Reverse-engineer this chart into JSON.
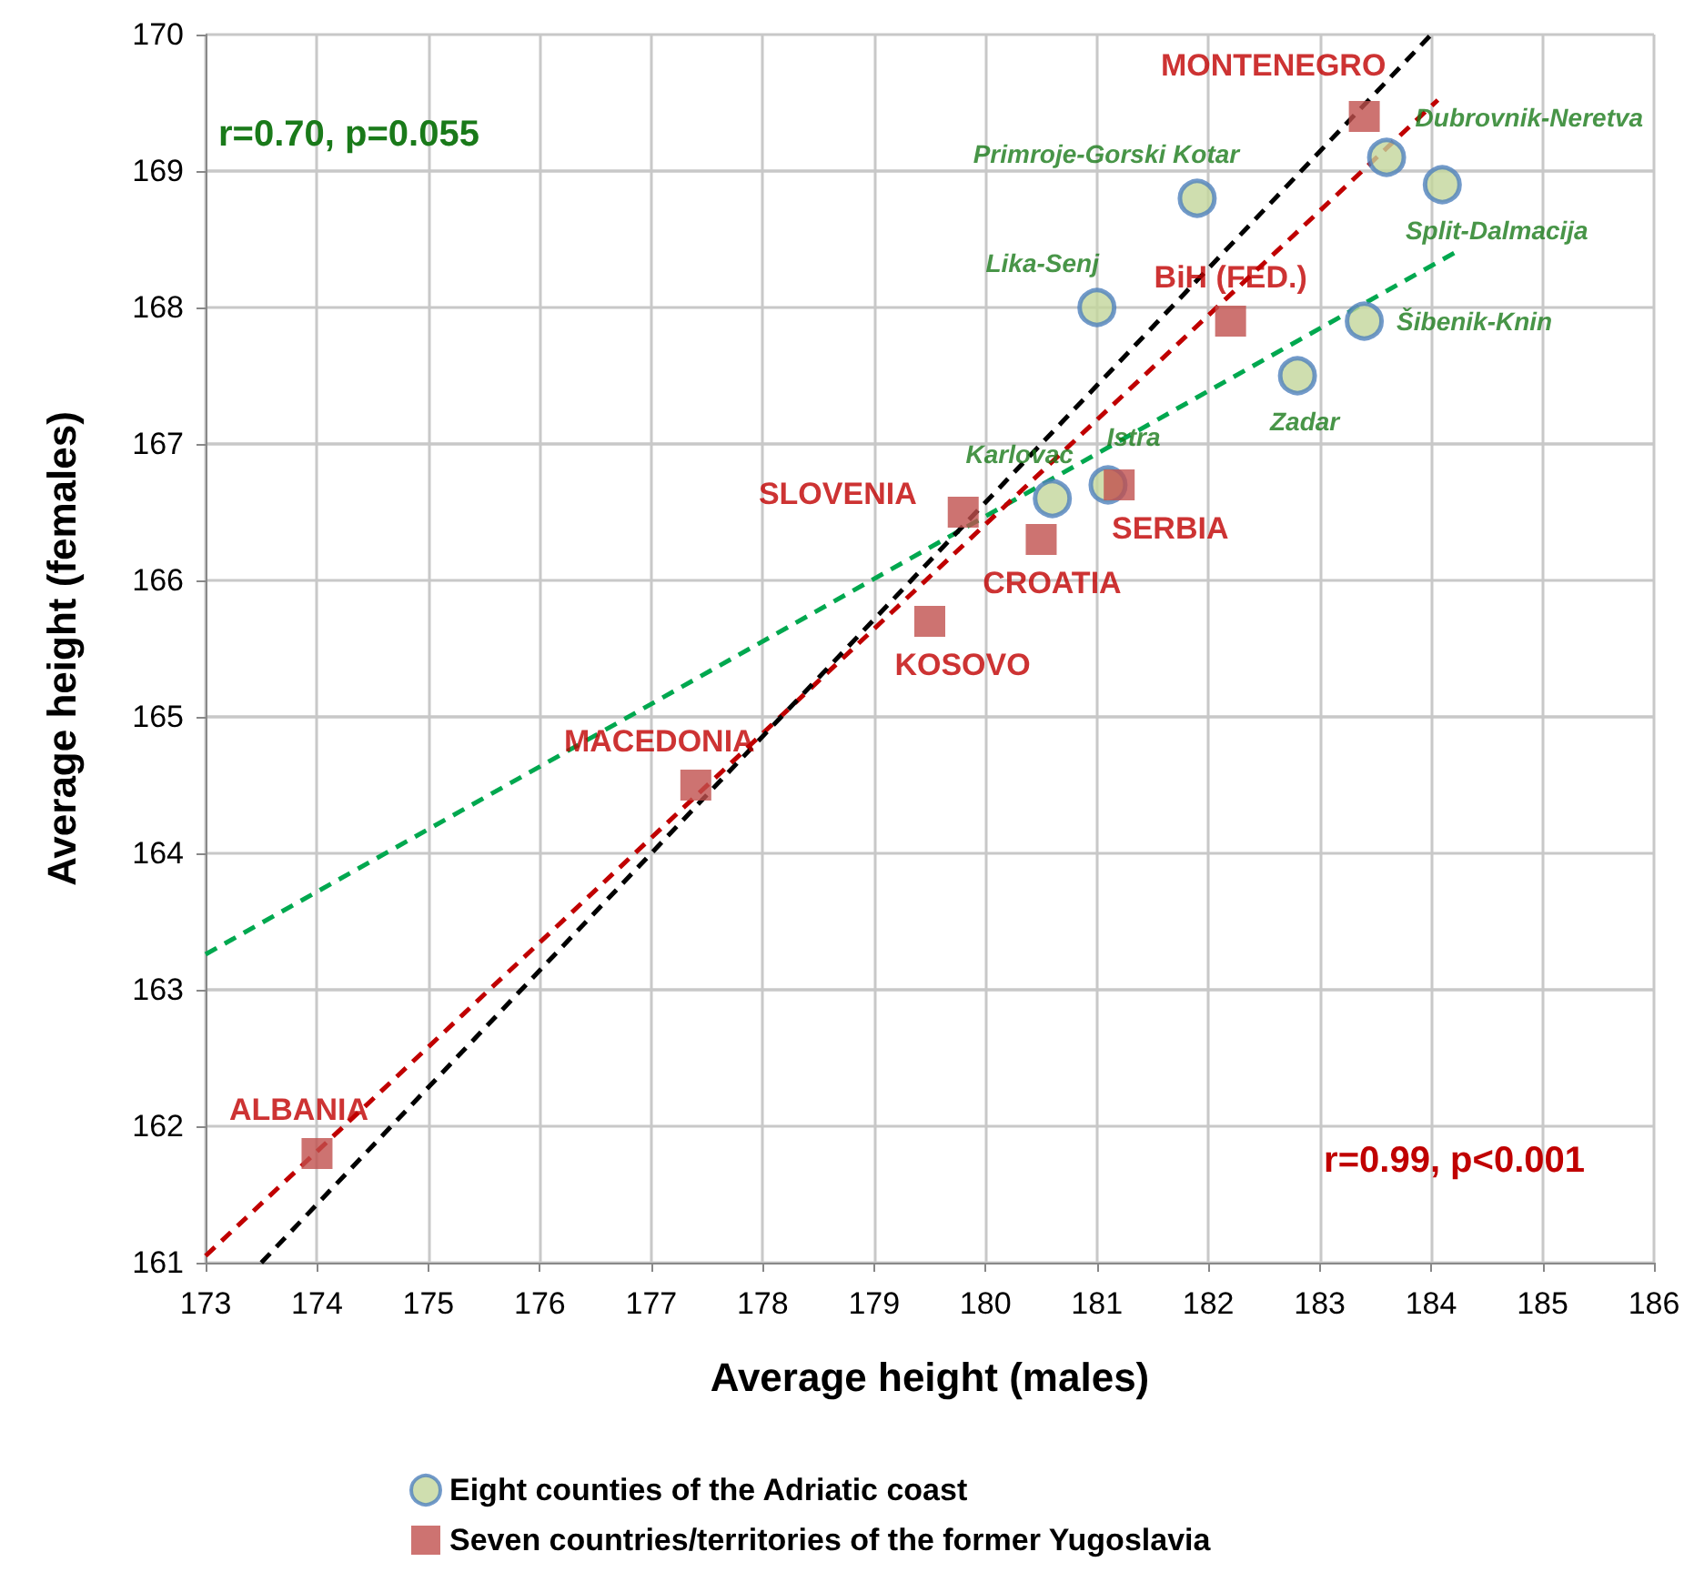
{
  "chart_data": {
    "type": "scatter",
    "xlabel": "Average height (males)",
    "ylabel": "Average height (females)",
    "xlim": [
      173,
      186
    ],
    "ylim": [
      161,
      170
    ],
    "xticks": [
      173,
      174,
      175,
      176,
      177,
      178,
      179,
      180,
      181,
      182,
      183,
      184,
      185,
      186
    ],
    "yticks": [
      161,
      162,
      163,
      164,
      165,
      166,
      167,
      168,
      169,
      170
    ],
    "grid": true,
    "legend": "bottom",
    "annotations": [
      "r=0.70, p=0.055",
      "r=0.99, p<0.001"
    ],
    "series": [
      {
        "name": "Eight counties of the Adriatic coast",
        "color": "#c3d69b",
        "marker": "circle",
        "x": [
          183.6,
          184.1,
          181.9,
          181.0,
          183.4,
          182.8,
          180.6,
          181.1
        ],
        "values": [
          169.1,
          168.9,
          168.8,
          168.0,
          167.9,
          167.5,
          166.6,
          166.7
        ],
        "value_labels": [
          "Dubrovnik-Neretva",
          "Split-Dalmacija",
          "Primroje-Gorski Kotar",
          "Lika-Senj",
          "Šibenik-Knin",
          "Zadar",
          "Karlovac",
          "Istra"
        ]
      },
      {
        "name": "Seven countries/territories of the former Yugoslavia",
        "color": "#c0504d",
        "marker": "square",
        "x": [
          183.4,
          182.2,
          181.2,
          179.8,
          180.5,
          179.5,
          177.4,
          174.0
        ],
        "values": [
          169.4,
          167.9,
          166.7,
          166.5,
          166.3,
          165.7,
          164.5,
          161.8
        ],
        "value_labels": [
          "MONTENEGRO",
          "BiH (FED.)",
          "SERBIA",
          "SLOVENIA",
          "CROATIA",
          "KOSOVO",
          "MACEDONIA",
          "ALBANIA"
        ]
      },
      {
        "type": "line",
        "color": "#00a84f",
        "line_style": "dashed",
        "marker": "none",
        "x": [
          173,
          184.23
        ],
        "values": [
          163.26,
          168.41
        ]
      },
      {
        "type": "line",
        "color": "#c00000",
        "line_style": "dashed",
        "marker": "none",
        "x": [
          173,
          184.06
        ],
        "values": [
          161.05,
          169.52
        ]
      },
      {
        "type": "line",
        "color": "#000000",
        "line_style": "dashed",
        "marker": "none",
        "x": [
          173.5,
          184.0
        ],
        "values": [
          161,
          170
        ]
      }
    ]
  }
}
